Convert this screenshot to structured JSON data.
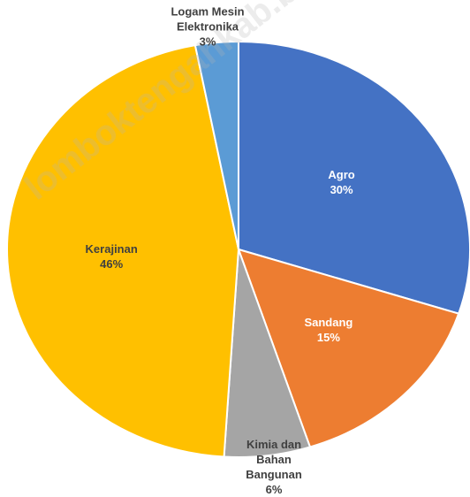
{
  "chart_data": {
    "type": "pie",
    "categories": [
      "Agro",
      "Sandang",
      "Kimia dan Bahan Bangunan",
      "Kerajinan",
      "Logam Mesin Elektronika"
    ],
    "values": [
      30,
      15,
      6,
      46,
      3
    ],
    "value_labels": [
      "30%",
      "15%",
      "6%",
      "46%",
      "3%"
    ],
    "colors": [
      "#4472c4",
      "#ed7d31",
      "#a5a5a5",
      "#ffc000",
      "#5b9bd5"
    ],
    "watermark": "lomboktengahkab.bps.go.id"
  }
}
